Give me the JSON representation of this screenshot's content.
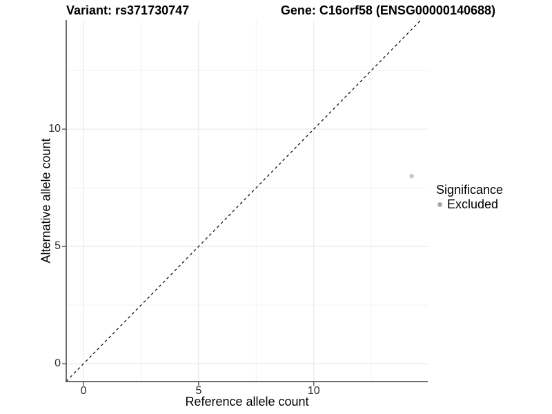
{
  "chart_data": {
    "type": "scatter",
    "title_variant": "Variant: rs371730747",
    "title_gene": "Gene: C16orf58 (ENSG00000140688)",
    "xlabel": "Reference allele count",
    "ylabel": "Alternative allele count",
    "x_ticks": [
      0,
      5,
      10
    ],
    "x_minor_ticks": [
      2.5,
      7.5,
      12.5
    ],
    "y_ticks": [
      0,
      5,
      10
    ],
    "y_minor_ticks": [
      2.5,
      7.5,
      12.5
    ],
    "xlim": [
      -0.75,
      14.95
    ],
    "ylim": [
      -0.76,
      14.65
    ],
    "grid": true,
    "grid_major_color": "#e5e5e5",
    "grid_minor_color": "#f2f2f2",
    "axis_line_color": "#3c3c3c",
    "identity_line": {
      "label": "y = x",
      "style": "dashed",
      "color": "#111111"
    },
    "series": [
      {
        "name": "Excluded",
        "color": "#c6c6c6",
        "points": [
          {
            "x": 14.25,
            "y": 8
          }
        ]
      }
    ],
    "legend": {
      "position": "right",
      "title": "Significance",
      "items": [
        {
          "label": "Excluded",
          "color": "#a8a8a8"
        }
      ]
    }
  }
}
